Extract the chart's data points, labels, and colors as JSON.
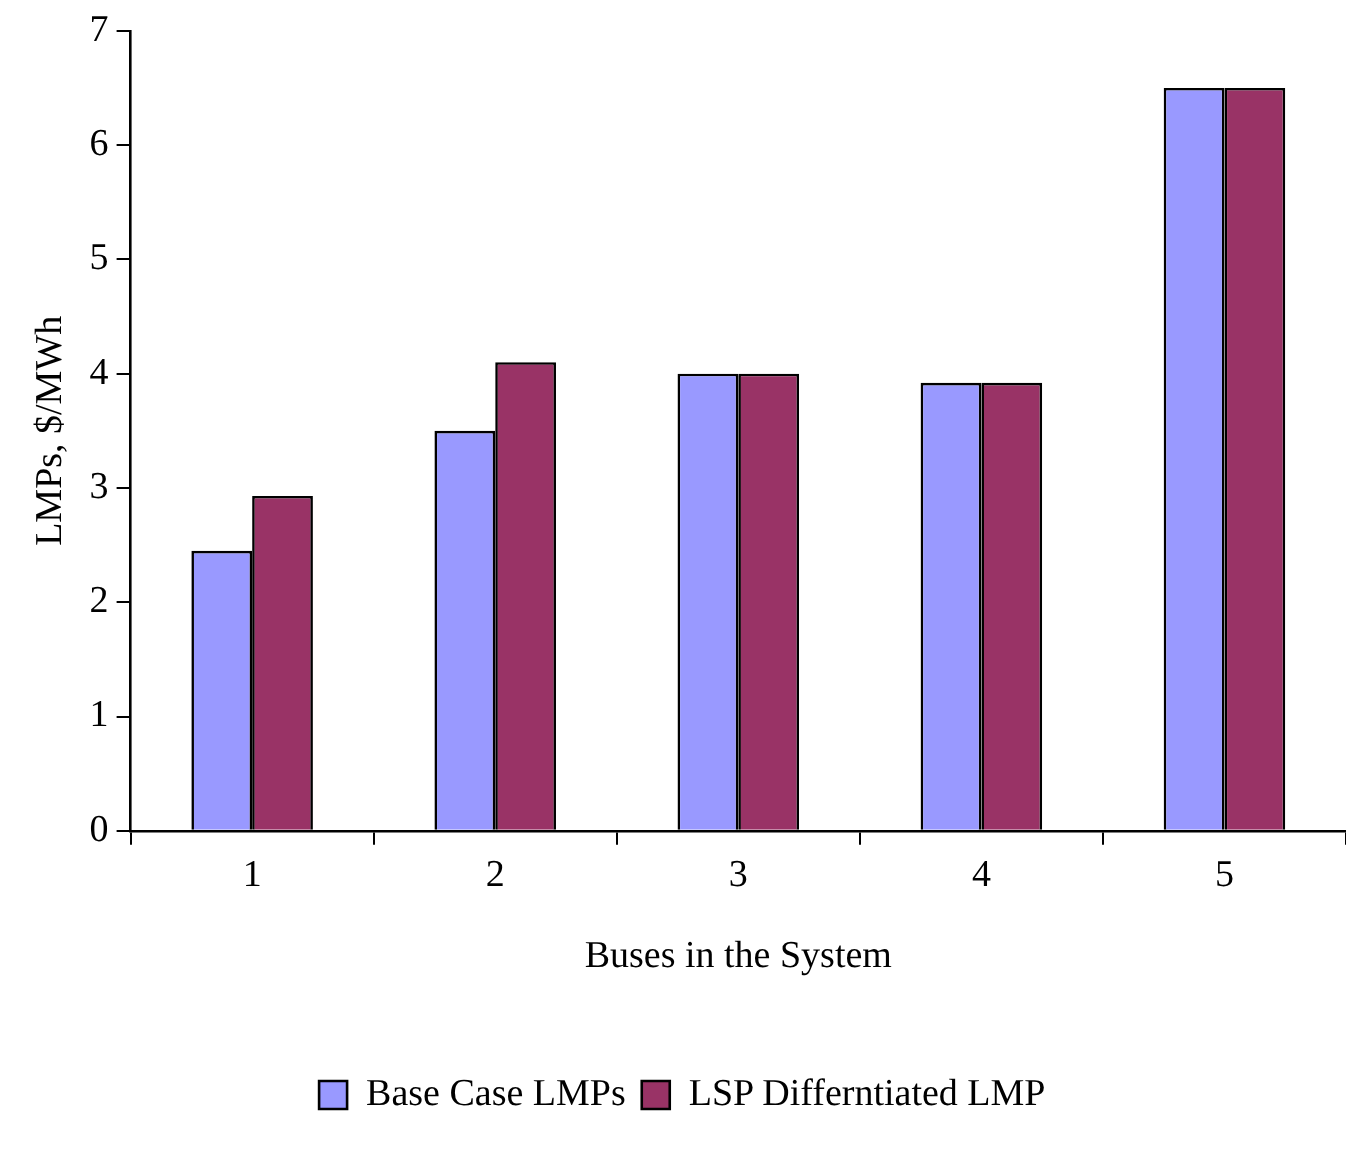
{
  "chart_data": {
    "type": "bar",
    "xlabel": "Buses in the System",
    "ylabel": "LMPs, $/MWh",
    "categories": [
      "1",
      "2",
      "3",
      "4",
      "5"
    ],
    "series": [
      {
        "name": "Base Case LMPs",
        "color": "#9999ff",
        "values": [
          2.45,
          3.5,
          4.0,
          3.92,
          6.5
        ]
      },
      {
        "name": "LSP Differntiated LMP",
        "color": "#993366",
        "values": [
          2.93,
          4.1,
          4.0,
          3.92,
          6.5
        ]
      }
    ],
    "ylim": [
      0,
      7
    ],
    "yticks": [
      0,
      1,
      2,
      3,
      4,
      5,
      6,
      7
    ],
    "grid": false,
    "legend": "bottom"
  }
}
